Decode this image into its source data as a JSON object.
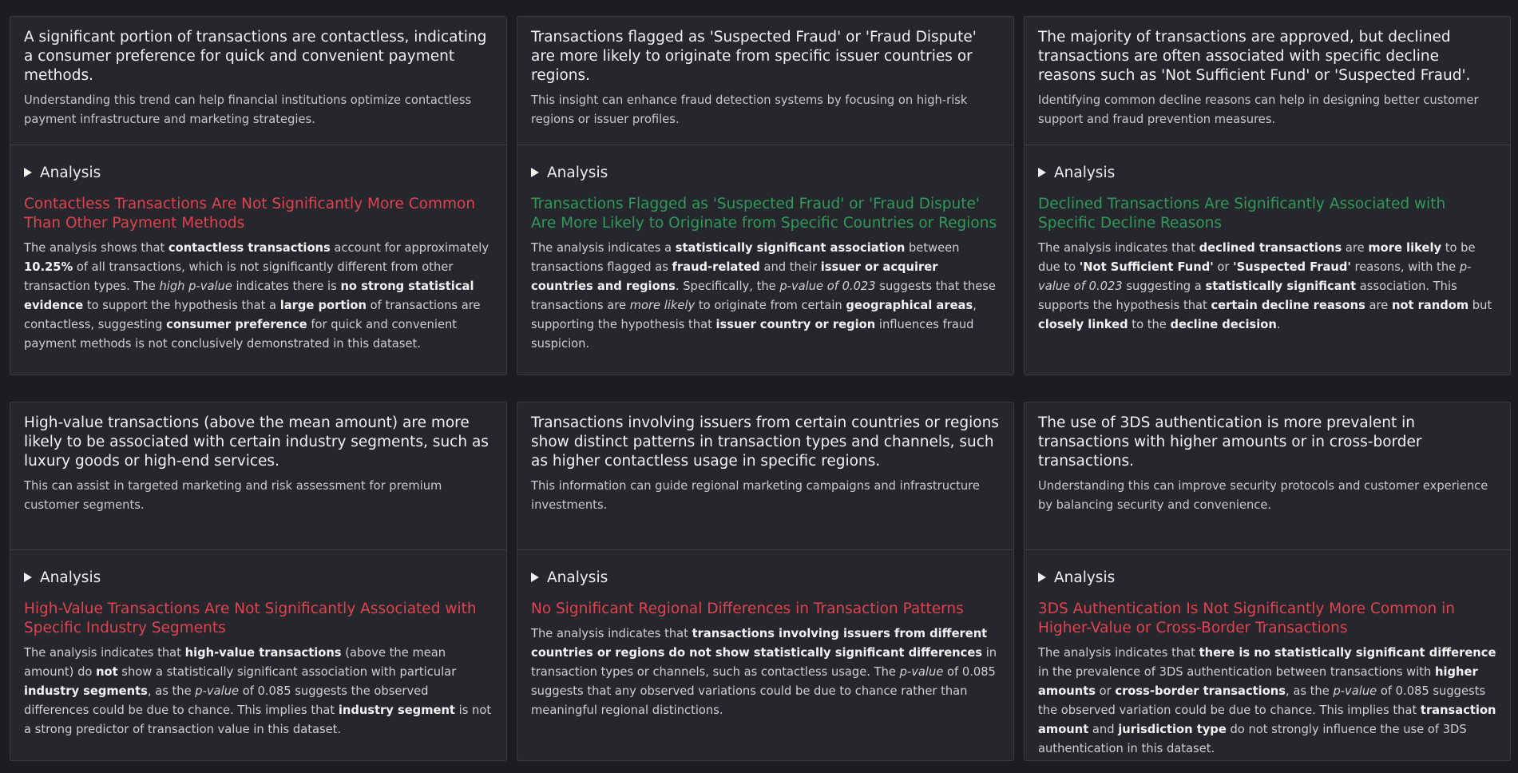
{
  "toggle_label": "Analysis",
  "cards": [
    {
      "hypothesis": "A significant portion of transactions are contactless, indicating a consumer preference for quick and convenient payment methods.",
      "rationale": "Understanding this trend can help financial institutions optimize contactless payment infrastructure and marketing strategies.",
      "verdict": "Contactless Transactions Are Not Significantly More Common Than Other Payment Methods",
      "verdict_status": "rejected",
      "summary": [
        {
          "t": "The analysis shows that "
        },
        {
          "t": "contactless transactions",
          "b": true
        },
        {
          "t": " account for approximately "
        },
        {
          "t": "10.25%",
          "b": true
        },
        {
          "t": " of all transactions, which is not significantly different from other transaction types. The "
        },
        {
          "t": "high p-value",
          "i": true
        },
        {
          "t": " indicates there is "
        },
        {
          "t": "no strong statistical evidence",
          "b": true
        },
        {
          "t": " to support the hypothesis that a "
        },
        {
          "t": "large portion",
          "b": true
        },
        {
          "t": " of transactions are contactless, suggesting "
        },
        {
          "t": "consumer preference",
          "b": true
        },
        {
          "t": " for quick and convenient payment methods is not conclusively demonstrated in this dataset."
        }
      ]
    },
    {
      "hypothesis": "Transactions flagged as 'Suspected Fraud' or 'Fraud Dispute' are more likely to originate from specific issuer countries or regions.",
      "rationale": "This insight can enhance fraud detection systems by focusing on high-risk regions or issuer profiles.",
      "verdict": "Transactions Flagged as 'Suspected Fraud' or 'Fraud Dispute' Are More Likely to Originate from Specific Countries or Regions",
      "verdict_status": "supported",
      "summary": [
        {
          "t": "The analysis indicates a "
        },
        {
          "t": "statistically significant association",
          "b": true
        },
        {
          "t": " between transactions flagged as "
        },
        {
          "t": "fraud-related",
          "b": true
        },
        {
          "t": " and their "
        },
        {
          "t": "issuer or acquirer countries and regions",
          "b": true
        },
        {
          "t": ". Specifically, the "
        },
        {
          "t": "p-value of 0.023",
          "i": true
        },
        {
          "t": " suggests that these transactions are "
        },
        {
          "t": "more likely",
          "i": true
        },
        {
          "t": " to originate from certain "
        },
        {
          "t": "geographical areas",
          "b": true
        },
        {
          "t": ", supporting the hypothesis that "
        },
        {
          "t": "issuer country or region",
          "b": true
        },
        {
          "t": " influences fraud suspicion."
        }
      ]
    },
    {
      "hypothesis": "The majority of transactions are approved, but declined transactions are often associated with specific decline reasons such as 'Not Sufficient Fund' or 'Suspected Fraud'.",
      "rationale": "Identifying common decline reasons can help in designing better customer support and fraud prevention measures.",
      "verdict": "Declined Transactions Are Significantly Associated with Specific Decline Reasons",
      "verdict_status": "supported",
      "summary": [
        {
          "t": "The analysis indicates that "
        },
        {
          "t": "declined transactions",
          "b": true
        },
        {
          "t": " are "
        },
        {
          "t": "more likely",
          "b": true
        },
        {
          "t": " to be due to "
        },
        {
          "t": "'Not Sufficient Fund'",
          "b": true
        },
        {
          "t": " or "
        },
        {
          "t": "'Suspected Fraud'",
          "b": true
        },
        {
          "t": " reasons, with the "
        },
        {
          "t": "p-value of 0.023",
          "i": true
        },
        {
          "t": " suggesting a "
        },
        {
          "t": "statistically significant",
          "b": true
        },
        {
          "t": " association. This supports the hypothesis that "
        },
        {
          "t": "certain decline reasons",
          "b": true
        },
        {
          "t": " are "
        },
        {
          "t": "not random",
          "b": true
        },
        {
          "t": " but "
        },
        {
          "t": "closely linked",
          "b": true
        },
        {
          "t": " to the "
        },
        {
          "t": "decline decision",
          "b": true
        },
        {
          "t": "."
        }
      ]
    },
    {
      "hypothesis": "High-value transactions (above the mean amount) are more likely to be associated with certain industry segments, such as luxury goods or high-end services.",
      "rationale": "This can assist in targeted marketing and risk assessment for premium customer segments.",
      "verdict": "High-Value Transactions Are Not Significantly Associated with Specific Industry Segments",
      "verdict_status": "rejected",
      "summary": [
        {
          "t": "The analysis indicates that "
        },
        {
          "t": "high-value transactions",
          "b": true
        },
        {
          "t": " (above the mean amount) do "
        },
        {
          "t": "not",
          "b": true
        },
        {
          "t": " show a statistically significant association with particular "
        },
        {
          "t": "industry segments",
          "b": true
        },
        {
          "t": ", as the "
        },
        {
          "t": "p-value",
          "i": true
        },
        {
          "t": " of 0.085 suggests the observed differences could be due to chance. This implies that "
        },
        {
          "t": "industry segment",
          "b": true
        },
        {
          "t": " is not a strong predictor of transaction value in this dataset."
        }
      ]
    },
    {
      "hypothesis": "Transactions involving issuers from certain countries or regions show distinct patterns in transaction types and channels, such as higher contactless usage in specific regions.",
      "rationale": "This information can guide regional marketing campaigns and infrastructure investments.",
      "verdict": "No Significant Regional Differences in Transaction Patterns",
      "verdict_status": "rejected",
      "summary": [
        {
          "t": "The analysis indicates that "
        },
        {
          "t": "transactions involving issuers from different countries or regions do not show statistically significant differences",
          "b": true
        },
        {
          "t": " in transaction types or channels, such as contactless usage. The "
        },
        {
          "t": "p-value",
          "i": true
        },
        {
          "t": " of 0.085 suggests that any observed variations could be due to chance rather than meaningful regional distinctions."
        }
      ]
    },
    {
      "hypothesis": "The use of 3DS authentication is more prevalent in transactions with higher amounts or in cross-border transactions.",
      "rationale": "Understanding this can improve security protocols and customer experience by balancing security and convenience.",
      "verdict": "3DS Authentication Is Not Significantly More Common in Higher-Value or Cross-Border Transactions",
      "verdict_status": "rejected",
      "summary": [
        {
          "t": "The analysis indicates that "
        },
        {
          "t": "there is no statistically significant difference",
          "b": true
        },
        {
          "t": " in the prevalence of 3DS authentication between transactions with "
        },
        {
          "t": "higher amounts",
          "b": true
        },
        {
          "t": " or "
        },
        {
          "t": "cross-border transactions",
          "b": true
        },
        {
          "t": ", as the "
        },
        {
          "t": "p-value",
          "i": true
        },
        {
          "t": " of 0.085 suggests the observed variation could be due to chance. This implies that "
        },
        {
          "t": "transaction amount",
          "b": true
        },
        {
          "t": " and "
        },
        {
          "t": "jurisdiction type",
          "b": true
        },
        {
          "t": " do not strongly influence the use of 3DS authentication in this dataset."
        }
      ]
    }
  ],
  "colors": {
    "rejected": "#e0434f",
    "supported": "#2f9a5a",
    "background": "#1b1d22",
    "card": "#25272c"
  }
}
